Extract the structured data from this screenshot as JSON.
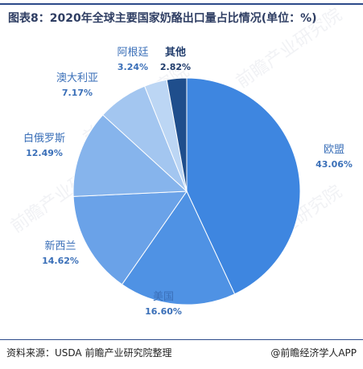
{
  "title": "图表8：2020年全球主要国家奶酪出口量占比情况(单位：%)",
  "footer": {
    "source": "资料来源：USDA 前瞻产业研究院整理",
    "brand": "@前瞻经济学人APP"
  },
  "watermark": "前瞻产业研究院",
  "chart_data": {
    "type": "pie",
    "title": "图表8：2020年全球主要国家奶酪出口量占比情况(单位：%)",
    "unit": "%",
    "slices": [
      {
        "label": "欧盟",
        "value": 43.06,
        "value_text": "43.06%",
        "color": "#3e86e0"
      },
      {
        "label": "美国",
        "value": 16.6,
        "value_text": "16.60%",
        "color": "#4f92e4"
      },
      {
        "label": "新西兰",
        "value": 14.62,
        "value_text": "14.62%",
        "color": "#6aa2e8"
      },
      {
        "label": "白俄罗斯",
        "value": 12.49,
        "value_text": "12.49%",
        "color": "#86b4ec"
      },
      {
        "label": "澳大利亚",
        "value": 7.17,
        "value_text": "7.17%",
        "color": "#a3c6f0"
      },
      {
        "label": "阿根廷",
        "value": 3.24,
        "value_text": "3.24%",
        "color": "#bcd6f4"
      },
      {
        "label": "其他",
        "value": 2.82,
        "value_text": "2.82%",
        "color": "#1f4e8c"
      }
    ],
    "start_angle_deg": 0,
    "direction": "clockwise",
    "label_color": "#3a6fb8",
    "label_color_dark": "#1f3b6b"
  }
}
